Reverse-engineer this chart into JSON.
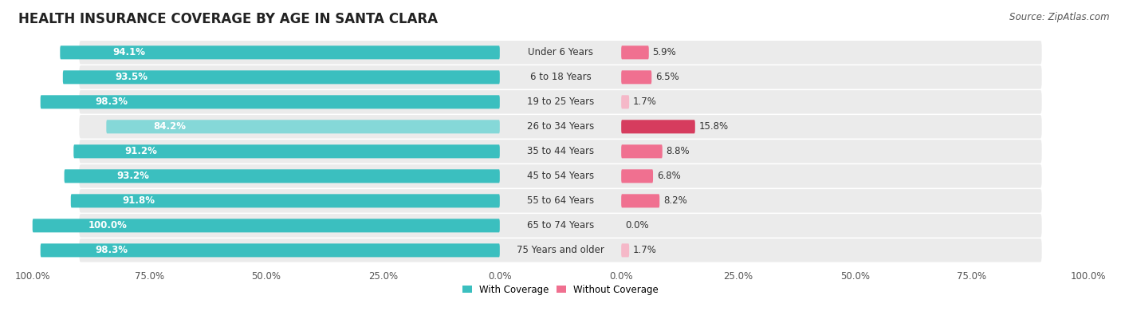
{
  "title": "HEALTH INSURANCE COVERAGE BY AGE IN SANTA CLARA",
  "source": "Source: ZipAtlas.com",
  "categories": [
    "Under 6 Years",
    "6 to 18 Years",
    "19 to 25 Years",
    "26 to 34 Years",
    "35 to 44 Years",
    "45 to 54 Years",
    "55 to 64 Years",
    "65 to 74 Years",
    "75 Years and older"
  ],
  "with_coverage": [
    94.1,
    93.5,
    98.3,
    84.2,
    91.2,
    93.2,
    91.8,
    100.0,
    98.3
  ],
  "without_coverage": [
    5.9,
    6.5,
    1.7,
    15.8,
    8.8,
    6.8,
    8.2,
    0.0,
    1.7
  ],
  "color_with": "#3bbfbf",
  "color_with_light": "#85d8d8",
  "color_without_high": "#d63c5e",
  "color_without_mid": "#f07090",
  "color_without_low": "#f5b8c8",
  "title_fontsize": 12,
  "label_fontsize": 8.5,
  "axis_fontsize": 8.5,
  "source_fontsize": 8.5
}
